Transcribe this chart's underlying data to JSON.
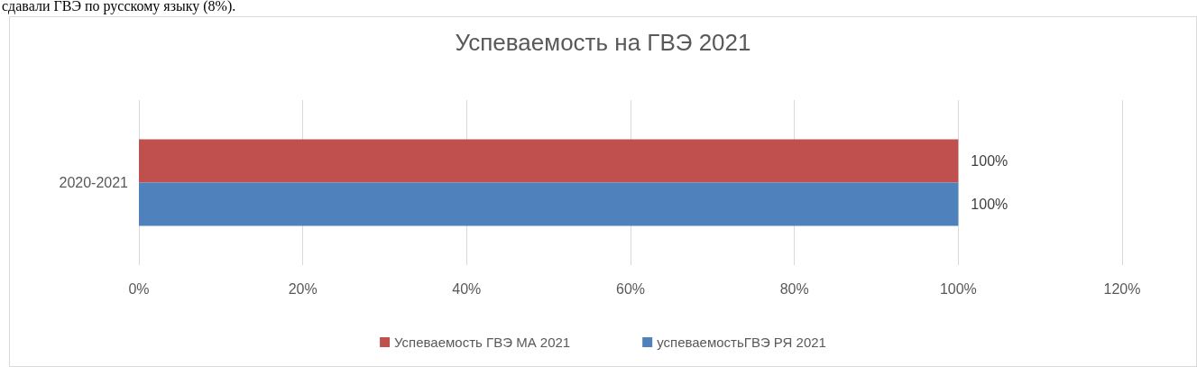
{
  "chart_data": {
    "type": "bar",
    "orientation": "horizontal",
    "title": "Успеваемость на ГВЭ 2021",
    "annotations": [
      "сдавали ГВЭ по русскому языку (8%)."
    ],
    "categories": [
      "2020-2021"
    ],
    "series": [
      {
        "name": "Успеваемость ГВЭ МА 2021",
        "color": "#c0504d",
        "values": [
          100
        ],
        "value_labels": [
          "100%"
        ]
      },
      {
        "name": "успеваемостьГВЭ РЯ 2021",
        "color": "#4f81bd",
        "values": [
          100
        ],
        "value_labels": [
          "100%"
        ]
      }
    ],
    "xlim": [
      0,
      120
    ],
    "xticks": [
      {
        "value": 0,
        "label": "0%"
      },
      {
        "value": 20,
        "label": "20%"
      },
      {
        "value": 40,
        "label": "40%"
      },
      {
        "value": 60,
        "label": "60%"
      },
      {
        "value": 80,
        "label": "80%"
      },
      {
        "value": 100,
        "label": "100%"
      },
      {
        "value": 120,
        "label": "120%"
      }
    ],
    "grid": "x",
    "legend": "bottom"
  }
}
